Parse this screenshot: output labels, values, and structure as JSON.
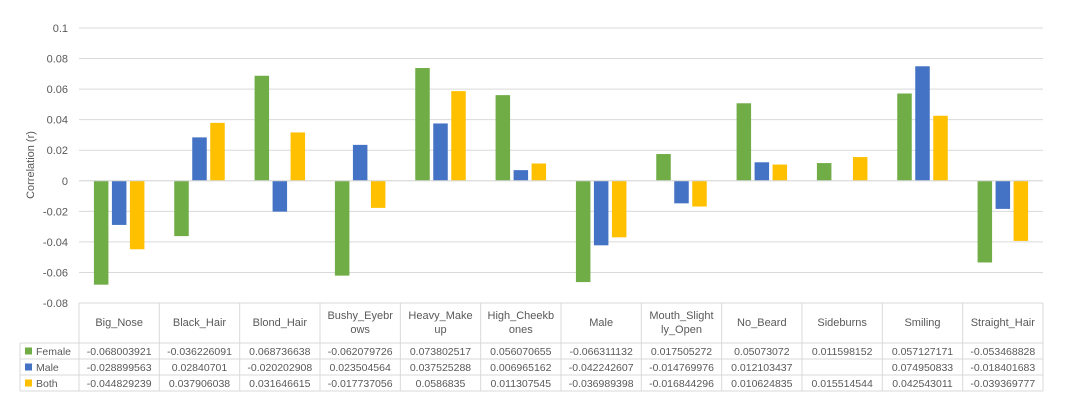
{
  "chart_data": {
    "type": "bar",
    "ylabel": "Correlation (r)",
    "ylim": [
      -0.08,
      0.1
    ],
    "yticks": [
      "0.1",
      "0.08",
      "0.06",
      "0.04",
      "0.02",
      "0",
      "-0.02",
      "-0.04",
      "-0.06",
      "-0.08"
    ],
    "ytick_values": [
      0.1,
      0.08,
      0.06,
      0.04,
      0.02,
      0,
      -0.02,
      -0.04,
      -0.06,
      -0.08
    ],
    "grid": true,
    "legend": "data-table-left",
    "categories": [
      [
        "Big_Nose"
      ],
      [
        "Black_Hair"
      ],
      [
        "Blond_Hair"
      ],
      [
        "Bushy_Eyebr",
        "ows"
      ],
      [
        "Heavy_Make",
        "up"
      ],
      [
        "High_Cheekb",
        "ones"
      ],
      [
        "Male"
      ],
      [
        "Mouth_Slight",
        "ly_Open"
      ],
      [
        "No_Beard"
      ],
      [
        "Sideburns"
      ],
      [
        "Smiling"
      ],
      [
        "Straight_Hair"
      ]
    ],
    "series": [
      {
        "name": "Female",
        "color": "#70ad47",
        "values": [
          -0.068003921,
          -0.036226091,
          0.068736638,
          -0.062079726,
          0.073802517,
          0.056070655,
          -0.066311132,
          0.017505272,
          0.05073072,
          0.011598152,
          0.057127171,
          -0.053468828
        ],
        "labels": [
          "-0.068003921",
          "-0.036226091",
          "0.068736638",
          "-0.062079726",
          "0.073802517",
          "0.056070655",
          "-0.066311132",
          "0.017505272",
          "0.05073072",
          "0.011598152",
          "0.057127171",
          "-0.053468828"
        ]
      },
      {
        "name": "Male",
        "color": "#4472c4",
        "values": [
          -0.028899563,
          0.02840701,
          -0.020202908,
          0.023504564,
          0.037525288,
          0.006965162,
          -0.042242607,
          -0.014769976,
          0.012103437,
          null,
          0.074950833,
          -0.018401683
        ],
        "labels": [
          "-0.028899563",
          "0.02840701",
          "-0.020202908",
          "0.023504564",
          "0.037525288",
          "0.006965162",
          "-0.042242607",
          "-0.014769976",
          "0.012103437",
          "",
          "0.074950833",
          "-0.018401683"
        ]
      },
      {
        "name": "Both",
        "color": "#ffc000",
        "values": [
          -0.044829239,
          0.037906038,
          0.031646615,
          -0.017737056,
          0.0586835,
          0.011307545,
          -0.036989398,
          -0.016844296,
          0.010624835,
          0.015514544,
          0.042543011,
          -0.039369777
        ],
        "labels": [
          "-0.044829239",
          "0.037906038",
          "0.031646615",
          "-0.017737056",
          "0.0586835",
          "0.011307545",
          "-0.036989398",
          "-0.016844296",
          "0.010624835",
          "0.015514544",
          "0.042543011",
          "-0.039369777"
        ]
      }
    ]
  }
}
